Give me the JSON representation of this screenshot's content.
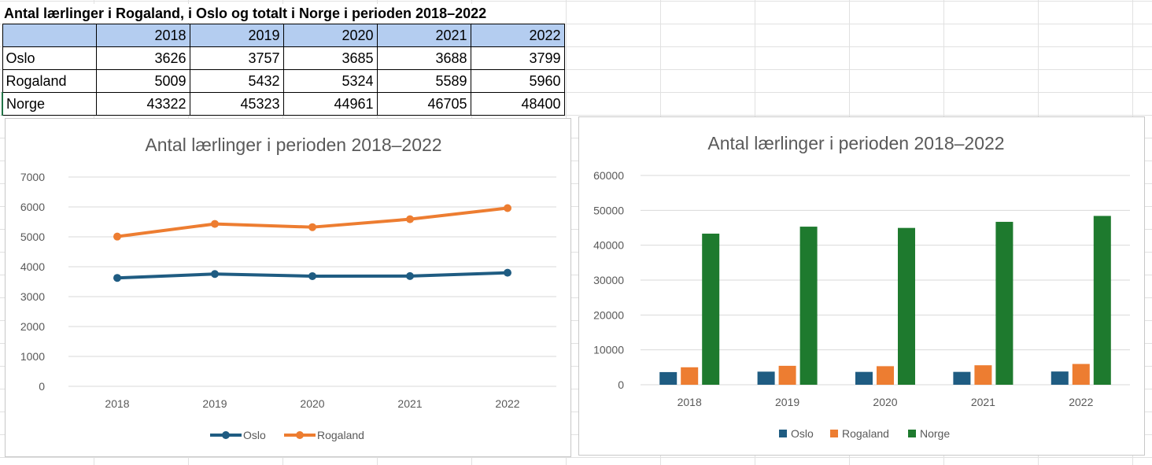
{
  "sheet": {
    "title": "Antal lærlinger i Rogaland, i Oslo og totalt i Norge i perioden 2018–2022",
    "years": [
      "2018",
      "2019",
      "2020",
      "2021",
      "2022"
    ],
    "rows": [
      {
        "label": "Oslo",
        "values": [
          "3626",
          "3757",
          "3685",
          "3688",
          "3799"
        ]
      },
      {
        "label": "Rogaland",
        "values": [
          "5009",
          "5432",
          "5324",
          "5589",
          "5960"
        ]
      },
      {
        "label": "Norge",
        "values": [
          "43322",
          "45323",
          "44961",
          "46705",
          "48400"
        ]
      }
    ]
  },
  "chart_data": [
    {
      "type": "line",
      "title": "Antal lærlinger i perioden 2018–2022",
      "categories": [
        "2018",
        "2019",
        "2020",
        "2021",
        "2022"
      ],
      "series": [
        {
          "name": "Oslo",
          "values": [
            3626,
            3757,
            3685,
            3688,
            3799
          ],
          "color": "#1f5c82"
        },
        {
          "name": "Rogaland",
          "values": [
            5009,
            5432,
            5324,
            5589,
            5960
          ],
          "color": "#ed7d31"
        }
      ],
      "ylim": [
        0,
        7000
      ],
      "yticks": [
        0,
        1000,
        2000,
        3000,
        4000,
        5000,
        6000,
        7000
      ],
      "grid": true,
      "legend": "bottom"
    },
    {
      "type": "bar",
      "title": "Antal lærlinger i perioden 2018–2022",
      "categories": [
        "2018",
        "2019",
        "2020",
        "2021",
        "2022"
      ],
      "series": [
        {
          "name": "Oslo",
          "values": [
            3626,
            3757,
            3685,
            3688,
            3799
          ],
          "color": "#1f5c82"
        },
        {
          "name": "Rogaland",
          "values": [
            5009,
            5432,
            5324,
            5589,
            5960
          ],
          "color": "#ed7d31"
        },
        {
          "name": "Norge",
          "values": [
            43322,
            45323,
            44961,
            46705,
            48400
          ],
          "color": "#1e7a2e"
        }
      ],
      "ylim": [
        0,
        60000
      ],
      "yticks": [
        0,
        10000,
        20000,
        30000,
        40000,
        50000,
        60000
      ],
      "grid": true,
      "legend": "bottom"
    }
  ]
}
